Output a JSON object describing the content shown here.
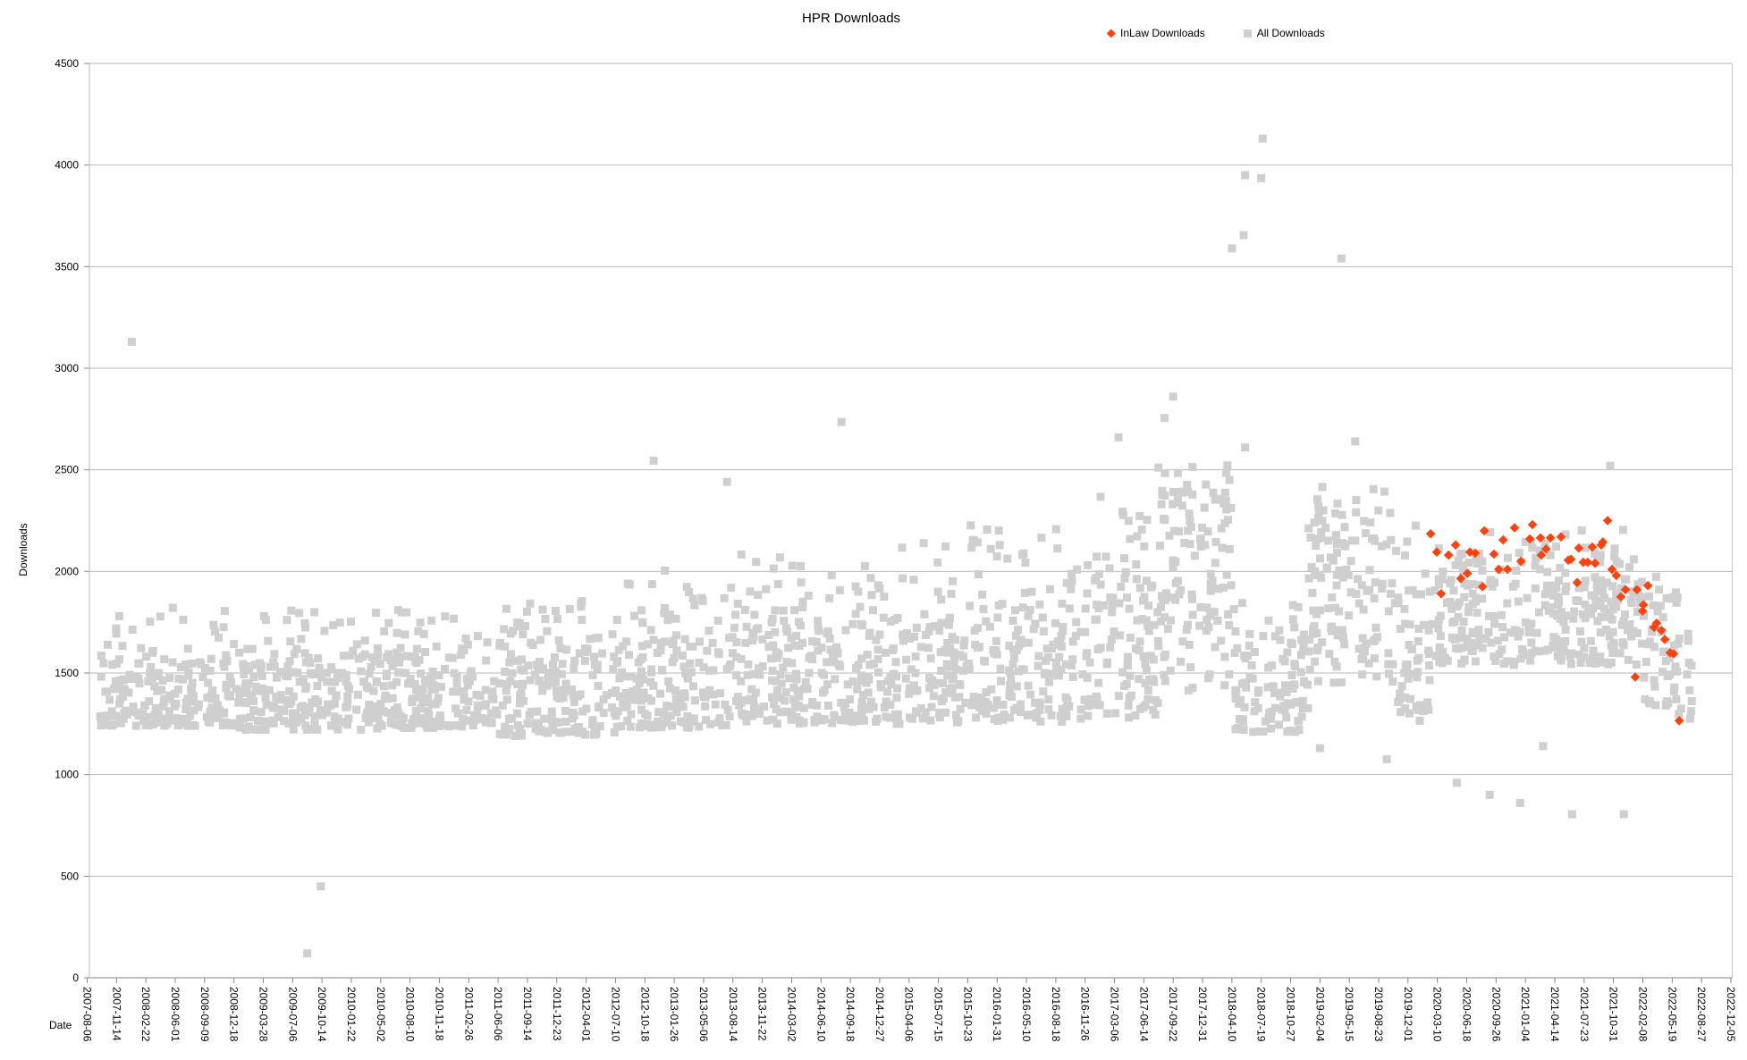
{
  "title": "HPR Downloads",
  "legend": {
    "items": [
      {
        "label": "InLaw Downloads",
        "marker": "diamond",
        "color": "#FF420E"
      },
      {
        "label": "All Downloads",
        "marker": "square",
        "color": "#CFCFCF"
      }
    ]
  },
  "chart_data": {
    "type": "scatter",
    "title": "HPR Downloads",
    "xlabel": "Date",
    "ylabel": "Downloads",
    "ylim": [
      0,
      4500
    ],
    "y_ticks": [
      0,
      500,
      1000,
      1500,
      2000,
      2500,
      3000,
      3500,
      4000,
      4500
    ],
    "grid": "horizontal-only",
    "legend_position": "top-right",
    "x_axis_note": "ticks every 100 days; point x values are in tick units (1 unit = 100 days from 2007-08-06)",
    "x_tick_labels": [
      "2007-08-06",
      "2007-11-14",
      "2008-02-22",
      "2008-06-01",
      "2008-09-09",
      "2008-12-18",
      "2009-03-28",
      "2009-07-06",
      "2009-10-14",
      "2010-01-22",
      "2010-05-02",
      "2010-08-10",
      "2010-11-18",
      "2011-02-26",
      "2011-06-06",
      "2011-09-14",
      "2011-12-23",
      "2012-04-01",
      "2012-07-10",
      "2012-10-18",
      "2013-01-26",
      "2013-05-06",
      "2013-08-14",
      "2013-11-22",
      "2014-03-02",
      "2014-06-10",
      "2014-09-18",
      "2014-12-27",
      "2015-04-06",
      "2015-07-15",
      "2015-10-23",
      "2016-01-31",
      "2016-05-10",
      "2016-08-18",
      "2016-11-26",
      "2017-03-06",
      "2017-06-14",
      "2017-09-22",
      "2017-12-31",
      "2018-04-10",
      "2018-07-19",
      "2018-10-27",
      "2019-02-04",
      "2019-05-15",
      "2019-08-23",
      "2019-12-01",
      "2020-03-10",
      "2020-06-18",
      "2020-09-26",
      "2021-01-04",
      "2021-04-14",
      "2021-07-23",
      "2021-10-31",
      "2022-02-08",
      "2022-05-19",
      "2022-08-27",
      "2022-12-05"
    ],
    "series": [
      {
        "name": "InLaw Downloads",
        "marker": "diamond",
        "color": "#FF420E",
        "points": [
          [
            45.77,
            2185
          ],
          [
            45.98,
            2095
          ],
          [
            46.13,
            1890
          ],
          [
            46.38,
            2080
          ],
          [
            46.62,
            2130
          ],
          [
            46.8,
            1965
          ],
          [
            47.02,
            1990
          ],
          [
            47.11,
            2095
          ],
          [
            47.29,
            2090
          ],
          [
            47.54,
            1925
          ],
          [
            47.6,
            2200
          ],
          [
            47.93,
            2085
          ],
          [
            48.09,
            2010
          ],
          [
            48.24,
            2155
          ],
          [
            48.39,
            2010
          ],
          [
            48.63,
            2215
          ],
          [
            48.85,
            2050
          ],
          [
            49.15,
            2160
          ],
          [
            49.24,
            2230
          ],
          [
            49.51,
            2165
          ],
          [
            49.54,
            2080
          ],
          [
            49.7,
            2110
          ],
          [
            49.85,
            2165
          ],
          [
            50.21,
            2170
          ],
          [
            50.46,
            2055
          ],
          [
            50.55,
            2060
          ],
          [
            50.76,
            1945
          ],
          [
            50.82,
            2115
          ],
          [
            50.97,
            2045
          ],
          [
            51.12,
            2045
          ],
          [
            51.28,
            2120
          ],
          [
            51.37,
            2040
          ],
          [
            51.58,
            2130
          ],
          [
            51.64,
            2145
          ],
          [
            51.8,
            2250
          ],
          [
            51.95,
            2010
          ],
          [
            52.1,
            1980
          ],
          [
            52.25,
            1875
          ],
          [
            52.41,
            1910
          ],
          [
            52.74,
            1480
          ],
          [
            52.8,
            1910
          ],
          [
            52.99,
            1805
          ],
          [
            53.02,
            1835
          ],
          [
            53.17,
            1930
          ],
          [
            53.38,
            1725
          ],
          [
            53.47,
            1745
          ],
          [
            53.63,
            1710
          ],
          [
            53.75,
            1665
          ],
          [
            53.93,
            1600
          ],
          [
            54.05,
            1595
          ],
          [
            54.24,
            1265
          ]
        ]
      },
      {
        "name": "All Downloads",
        "marker": "square",
        "color": "#CFCFCF",
        "outliers": [
          [
            1.52,
            3130
          ],
          [
            7.5,
            120
          ],
          [
            7.96,
            450
          ],
          [
            19.3,
            2545
          ],
          [
            21.8,
            2440
          ],
          [
            25.7,
            2735
          ],
          [
            35.14,
            2660
          ],
          [
            36.7,
            2755
          ],
          [
            37.0,
            2860
          ],
          [
            39.0,
            3590
          ],
          [
            39.4,
            3655
          ],
          [
            39.45,
            3950
          ],
          [
            39.45,
            2610
          ],
          [
            40.0,
            3935
          ],
          [
            40.05,
            4130
          ],
          [
            42.0,
            1130
          ],
          [
            42.73,
            3540
          ],
          [
            43.2,
            2640
          ],
          [
            44.28,
            1075
          ],
          [
            45.4,
            1265
          ],
          [
            46.66,
            960
          ],
          [
            47.78,
            900
          ],
          [
            48.82,
            860
          ],
          [
            49.6,
            1140
          ],
          [
            50.59,
            805
          ],
          [
            51.89,
            2520
          ],
          [
            52.35,
            805
          ]
        ],
        "dense_cloud_segments": {
          "fields": [
            "t_start",
            "t_end",
            "band_low",
            "band_high",
            "tail_max",
            "points_per_tick",
            "skew"
          ],
          "rows": [
            [
              0.4,
              5,
              1240,
              1540,
              1840,
              46,
              1.35
            ],
            [
              5,
              10,
              1220,
              1530,
              1810,
              46,
              1.35
            ],
            [
              10,
              14,
              1230,
              1560,
              1820,
              46,
              1.35
            ],
            [
              14,
              18,
              1190,
              1560,
              1900,
              46,
              1.35
            ],
            [
              18,
              22,
              1230,
              1630,
              2020,
              46,
              1.35
            ],
            [
              22,
              26,
              1250,
              1690,
              2100,
              46,
              1.3
            ],
            [
              26,
              30,
              1250,
              1740,
              2160,
              46,
              1.3
            ],
            [
              30,
              34,
              1260,
              1800,
              2230,
              46,
              1.25
            ],
            [
              34,
              36.5,
              1280,
              1960,
              2430,
              46,
              1.15
            ],
            [
              36.5,
              39,
              1380,
              2330,
              2530,
              48,
              0.8
            ],
            [
              39,
              41.6,
              1210,
              1570,
              1850,
              40,
              1.3
            ],
            [
              41.6,
              44.6,
              1450,
              2150,
              2420,
              46,
              0.9
            ],
            [
              44.6,
              46,
              1300,
              1900,
              2250,
              40,
              1.1
            ],
            [
              46,
              53,
              1540,
              1940,
              2210,
              44,
              1.1
            ],
            [
              53,
              54.2,
              1340,
              1790,
              1990,
              40,
              1.2
            ],
            [
              54.2,
              54.7,
              1230,
              1570,
              1700,
              26,
              1.2
            ]
          ]
        },
        "cloud_seed": 1337
      }
    ]
  }
}
